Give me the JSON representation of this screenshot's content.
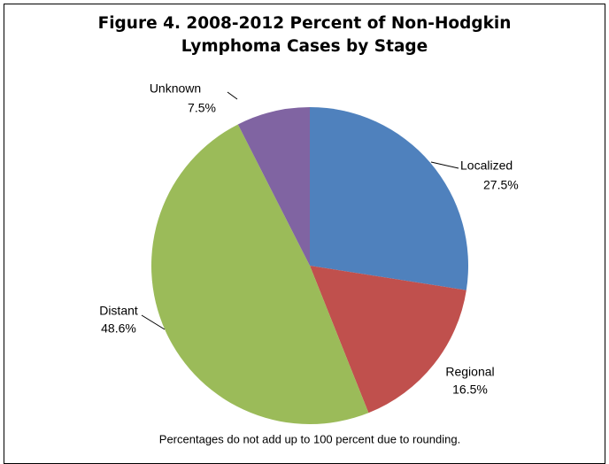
{
  "chart_data": {
    "type": "pie",
    "title": "Figure 4. 2008-2012 Percent of Non-Hodgkin Lymphoma Cases by Stage",
    "categories": [
      "Localized",
      "Regional",
      "Distant",
      "Unknown"
    ],
    "values": [
      27.5,
      16.5,
      48.6,
      7.5
    ],
    "value_labels": [
      "27.5%",
      "16.5%",
      "48.6%",
      "7.5%"
    ],
    "colors": [
      "#4f81bd",
      "#c0504d",
      "#9bbb59",
      "#8064a2"
    ],
    "note": "Percentages do not add up to 100 percent due to rounding."
  }
}
